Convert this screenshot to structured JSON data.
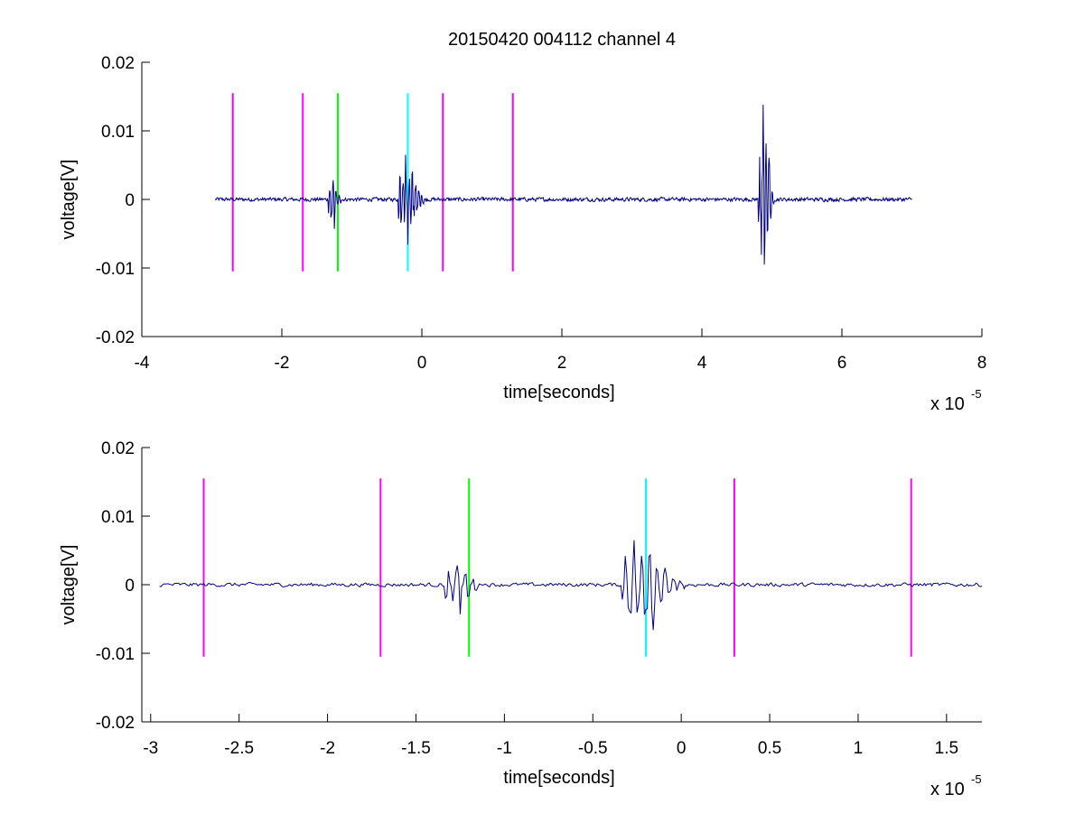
{
  "figure": {
    "title": "20150420 004112 channel 4",
    "colors": {
      "background": "#ffffff",
      "axes": "#000000",
      "signal": "#00008b",
      "marker_magenta": "#ff00ff",
      "marker_green": "#00ff00",
      "marker_cyan": "#00ffff"
    }
  },
  "chart_data": [
    {
      "type": "line",
      "title": "20150420 004112 channel 4",
      "xlabel": "time[seconds]",
      "ylabel": "voltage[V]",
      "x_multiplier": "x 10",
      "x_exponent": "-5",
      "xlim": [
        -4,
        8
      ],
      "ylim": [
        -0.02,
        0.02
      ],
      "xticks": [
        -4,
        -2,
        0,
        2,
        4,
        6,
        8
      ],
      "xtick_labels": [
        "-4",
        "-2",
        "0",
        "2",
        "4",
        "6",
        "8"
      ],
      "yticks": [
        0.02,
        0.01,
        0,
        -0.01,
        -0.02
      ],
      "ytick_labels": [
        "0.02",
        "0.01",
        "0",
        "-0.01",
        "-0.02"
      ],
      "grid": false,
      "signal": {
        "x_start": -2.95,
        "x_end": 7.0,
        "noise_amplitude": 0.0003,
        "bursts": [
          {
            "x": -1.32,
            "duration": 0.18,
            "peak_pos": 0.0028,
            "peak_neg": -0.0043
          },
          {
            "x": -0.32,
            "duration": 0.35,
            "peak_pos": 0.0065,
            "peak_neg": -0.0066
          },
          {
            "x": 4.82,
            "duration": 0.22,
            "peak_pos": 0.0138,
            "peak_neg": -0.0095
          }
        ]
      },
      "markers": [
        {
          "x": -2.7,
          "color": "magenta",
          "y_range": [
            -0.0105,
            0.0155
          ]
        },
        {
          "x": -1.7,
          "color": "magenta",
          "y_range": [
            -0.0105,
            0.0155
          ]
        },
        {
          "x": -1.2,
          "color": "green",
          "y_range": [
            -0.0105,
            0.0155
          ]
        },
        {
          "x": -0.2,
          "color": "cyan",
          "y_range": [
            -0.0105,
            0.0155
          ]
        },
        {
          "x": 0.3,
          "color": "magenta",
          "y_range": [
            -0.0105,
            0.0155
          ]
        },
        {
          "x": 1.3,
          "color": "magenta",
          "y_range": [
            -0.0105,
            0.0155
          ]
        }
      ]
    },
    {
      "type": "line",
      "title": "",
      "xlabel": "time[seconds]",
      "ylabel": "voltage[V]",
      "x_multiplier": "x 10",
      "x_exponent": "-5",
      "xlim": [
        -3.05,
        1.7
      ],
      "ylim": [
        -0.02,
        0.02
      ],
      "xticks": [
        -3,
        -2.5,
        -2,
        -1.5,
        -1,
        -0.5,
        0,
        0.5,
        1,
        1.5
      ],
      "xtick_labels": [
        "-3",
        "-2.5",
        "-2",
        "-1.5",
        "-1",
        "-0.5",
        "0",
        "0.5",
        "1",
        "1.5"
      ],
      "yticks": [
        0.02,
        0.01,
        0,
        -0.01,
        -0.02
      ],
      "ytick_labels": [
        "0.02",
        "0.01",
        "0",
        "-0.01",
        "-0.02"
      ],
      "grid": false,
      "signal": {
        "x_start": -2.95,
        "x_end": 1.7,
        "noise_amplitude": 0.0003,
        "bursts": [
          {
            "x": -1.32,
            "duration": 0.2,
            "peak_pos": 0.0028,
            "peak_neg": -0.0043
          },
          {
            "x": -0.32,
            "duration": 0.34,
            "peak_pos": 0.0065,
            "peak_neg": -0.0066
          }
        ]
      },
      "markers": [
        {
          "x": -2.7,
          "color": "magenta",
          "y_range": [
            -0.0105,
            0.0155
          ]
        },
        {
          "x": -1.7,
          "color": "magenta",
          "y_range": [
            -0.0105,
            0.0155
          ]
        },
        {
          "x": -1.2,
          "color": "green",
          "y_range": [
            -0.0105,
            0.0155
          ]
        },
        {
          "x": -0.2,
          "color": "cyan",
          "y_range": [
            -0.0105,
            0.0155
          ]
        },
        {
          "x": 0.3,
          "color": "magenta",
          "y_range": [
            -0.0105,
            0.0155
          ]
        },
        {
          "x": 1.3,
          "color": "magenta",
          "y_range": [
            -0.0105,
            0.0155
          ]
        }
      ]
    }
  ]
}
